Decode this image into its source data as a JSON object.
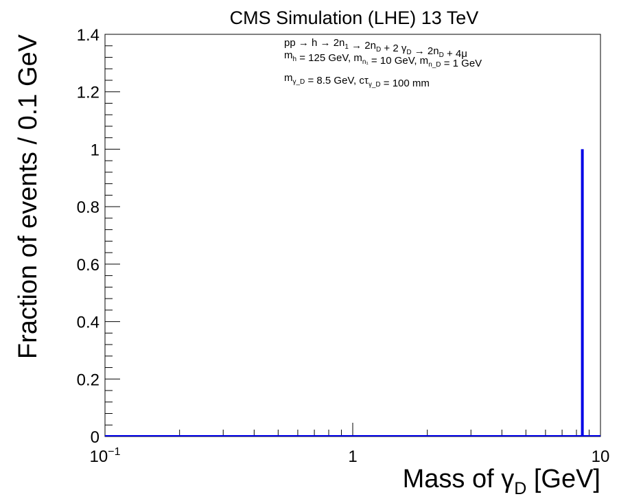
{
  "chart_data": {
    "type": "histogram",
    "title": "CMS Simulation (LHE) 13 TeV",
    "xlabel_main": "Mass of γ",
    "xlabel_sub": "D",
    "xlabel_unit": " [GeV]",
    "ylabel": "Fraction of events / 0.1 GeV",
    "xscale": "log",
    "xlim": [
      0.1,
      10
    ],
    "ylim": [
      0,
      1.4
    ],
    "x_ticks": [
      {
        "value": 0.1,
        "base": "10",
        "exp": "−1"
      },
      {
        "value": 1,
        "base": "1",
        "exp": ""
      },
      {
        "value": 10,
        "base": "10",
        "exp": ""
      }
    ],
    "y_ticks": [
      0,
      0.2,
      0.4,
      0.6,
      0.8,
      1,
      1.2,
      1.4
    ],
    "y_tick_labels": [
      "0",
      "0.2",
      "0.4",
      "0.6",
      "0.8",
      "1",
      "1.2",
      "1.4"
    ],
    "series": [
      {
        "color": "#0000e6",
        "bins": [
          {
            "x_low": 8.4,
            "x_high": 8.5,
            "value": 1.0
          }
        ]
      }
    ],
    "annotations": [
      {
        "id": "process",
        "parts": [
          {
            "t": "pp → h → 2n"
          },
          {
            "t": "1",
            "sub": true
          },
          {
            "t": " → 2n"
          },
          {
            "t": "D",
            "sub": true
          },
          {
            "t": " + 2 γ"
          },
          {
            "t": "D",
            "sub": true
          },
          {
            "t": " → 2n"
          },
          {
            "t": "D",
            "sub": true
          },
          {
            "t": " + 4μ"
          }
        ]
      },
      {
        "id": "masses",
        "parts": [
          {
            "t": "m"
          },
          {
            "t": "h",
            "sub": true
          },
          {
            "t": " = 125 GeV, m"
          },
          {
            "t": "n₁",
            "sub": true
          },
          {
            "t": " = 10 GeV, m"
          },
          {
            "t": "n_D",
            "sub": true
          },
          {
            "t": " = 1 GeV"
          }
        ]
      },
      {
        "id": "dark-photon",
        "parts": [
          {
            "t": "m"
          },
          {
            "t": "γ_D",
            "sub": true
          },
          {
            "t": " = 8.5 GeV, cτ"
          },
          {
            "t": "γ_D",
            "sub": true
          },
          {
            "t": " = 100 mm"
          }
        ]
      }
    ],
    "grid": false,
    "legend": "none"
  }
}
